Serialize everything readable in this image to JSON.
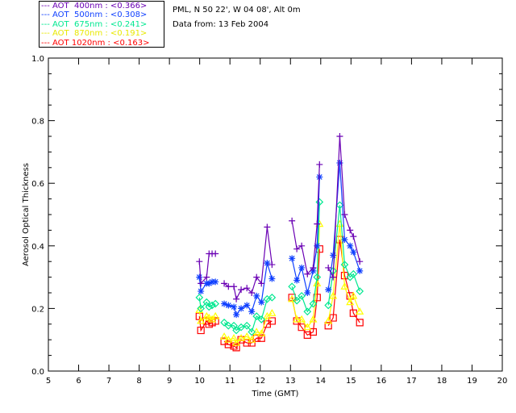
{
  "header": {
    "site": "PML, N 50 22', W 04 08', Alt 0m",
    "date": "Data from: 13 Feb 2004"
  },
  "chart_data": {
    "type": "line",
    "xlabel": "Time (GMT)",
    "ylabel": "Aerosol Optical Thickness",
    "xlim": [
      5,
      20
    ],
    "ylim": [
      0.0,
      1.0
    ],
    "xticks": [
      "5",
      "6",
      "7",
      "8",
      "9",
      "10",
      "11",
      "12",
      "13",
      "14",
      "15",
      "16",
      "17",
      "18",
      "19",
      "20"
    ],
    "yticks": [
      "0.0",
      "0.2",
      "0.4",
      "0.6",
      "0.8",
      "1.0"
    ],
    "legend_placement": "top-left outside",
    "x_segments": [
      [
        9.99,
        10.04,
        10.23,
        10.31,
        10.41,
        10.52
      ],
      [
        10.81,
        10.95,
        11.13,
        11.21,
        11.37,
        11.56,
        11.72,
        11.88,
        12.04,
        12.23,
        12.39
      ],
      [
        13.05,
        13.21,
        13.37,
        13.56,
        13.75,
        13.88,
        13.96
      ],
      [
        14.25,
        14.41,
        14.63,
        14.79,
        14.97,
        15.08,
        15.29
      ]
    ],
    "series": [
      {
        "name": "AOT  400nm",
        "mean": "<0.366>",
        "color": "#6a00b4",
        "marker": "plus",
        "segments": [
          [
            0.35,
            0.28,
            0.3,
            0.375,
            0.375,
            0.375
          ],
          [
            0.28,
            0.27,
            0.27,
            0.23,
            0.26,
            0.265,
            0.25,
            0.3,
            0.28,
            0.46,
            0.34
          ],
          [
            0.48,
            0.39,
            0.4,
            0.31,
            0.33,
            0.47,
            0.66
          ],
          [
            0.33,
            0.3,
            0.75,
            0.5,
            0.45,
            0.43,
            0.35
          ]
        ]
      },
      {
        "name": "AOT  500nm",
        "mean": "<0.308>",
        "color": "#1040ff",
        "marker": "asterisk",
        "segments": [
          [
            0.3,
            0.255,
            0.28,
            0.28,
            0.285,
            0.285
          ],
          [
            0.215,
            0.21,
            0.205,
            0.18,
            0.2,
            0.21,
            0.19,
            0.24,
            0.22,
            0.345,
            0.295
          ],
          [
            0.36,
            0.29,
            0.33,
            0.25,
            0.32,
            0.4,
            0.62
          ],
          [
            0.26,
            0.37,
            0.665,
            0.42,
            0.4,
            0.38,
            0.32
          ]
        ]
      },
      {
        "name": "AOT  675nm",
        "mean": "<0.241>",
        "color": "#00e890",
        "marker": "diamond",
        "segments": [
          [
            0.235,
            0.2,
            0.22,
            0.205,
            0.21,
            0.215
          ],
          [
            0.155,
            0.145,
            0.145,
            0.13,
            0.14,
            0.145,
            0.125,
            0.175,
            0.165,
            0.23,
            0.235
          ],
          [
            0.27,
            0.225,
            0.24,
            0.19,
            0.215,
            0.3,
            0.54
          ],
          [
            0.21,
            0.32,
            0.53,
            0.34,
            0.3,
            0.31,
            0.255
          ]
        ]
      },
      {
        "name": "AOT  870nm",
        "mean": "<0.191>",
        "color": "#ffff00",
        "marker": "triangle",
        "segments": [
          [
            0.195,
            0.16,
            0.175,
            0.17,
            0.165,
            0.175
          ],
          [
            0.11,
            0.1,
            0.105,
            0.09,
            0.105,
            0.11,
            0.1,
            0.125,
            0.12,
            0.175,
            0.185
          ],
          [
            0.23,
            0.165,
            0.165,
            0.14,
            0.165,
            0.28,
            0.47
          ],
          [
            0.16,
            0.24,
            0.47,
            0.27,
            0.22,
            0.24,
            0.19
          ]
        ]
      },
      {
        "name": "AOT 1020nm",
        "mean": "<0.163>",
        "color": "#ff0000",
        "marker": "square",
        "segments": [
          [
            0.175,
            0.13,
            0.16,
            0.15,
            0.155,
            0.16
          ],
          [
            0.095,
            0.085,
            0.08,
            0.075,
            0.1,
            0.09,
            0.09,
            0.105,
            0.105,
            0.15,
            0.16
          ],
          [
            0.235,
            0.16,
            0.14,
            0.115,
            0.125,
            0.235,
            0.39
          ],
          [
            0.145,
            0.17,
            0.42,
            0.305,
            0.24,
            0.185,
            0.155
          ]
        ]
      }
    ]
  }
}
